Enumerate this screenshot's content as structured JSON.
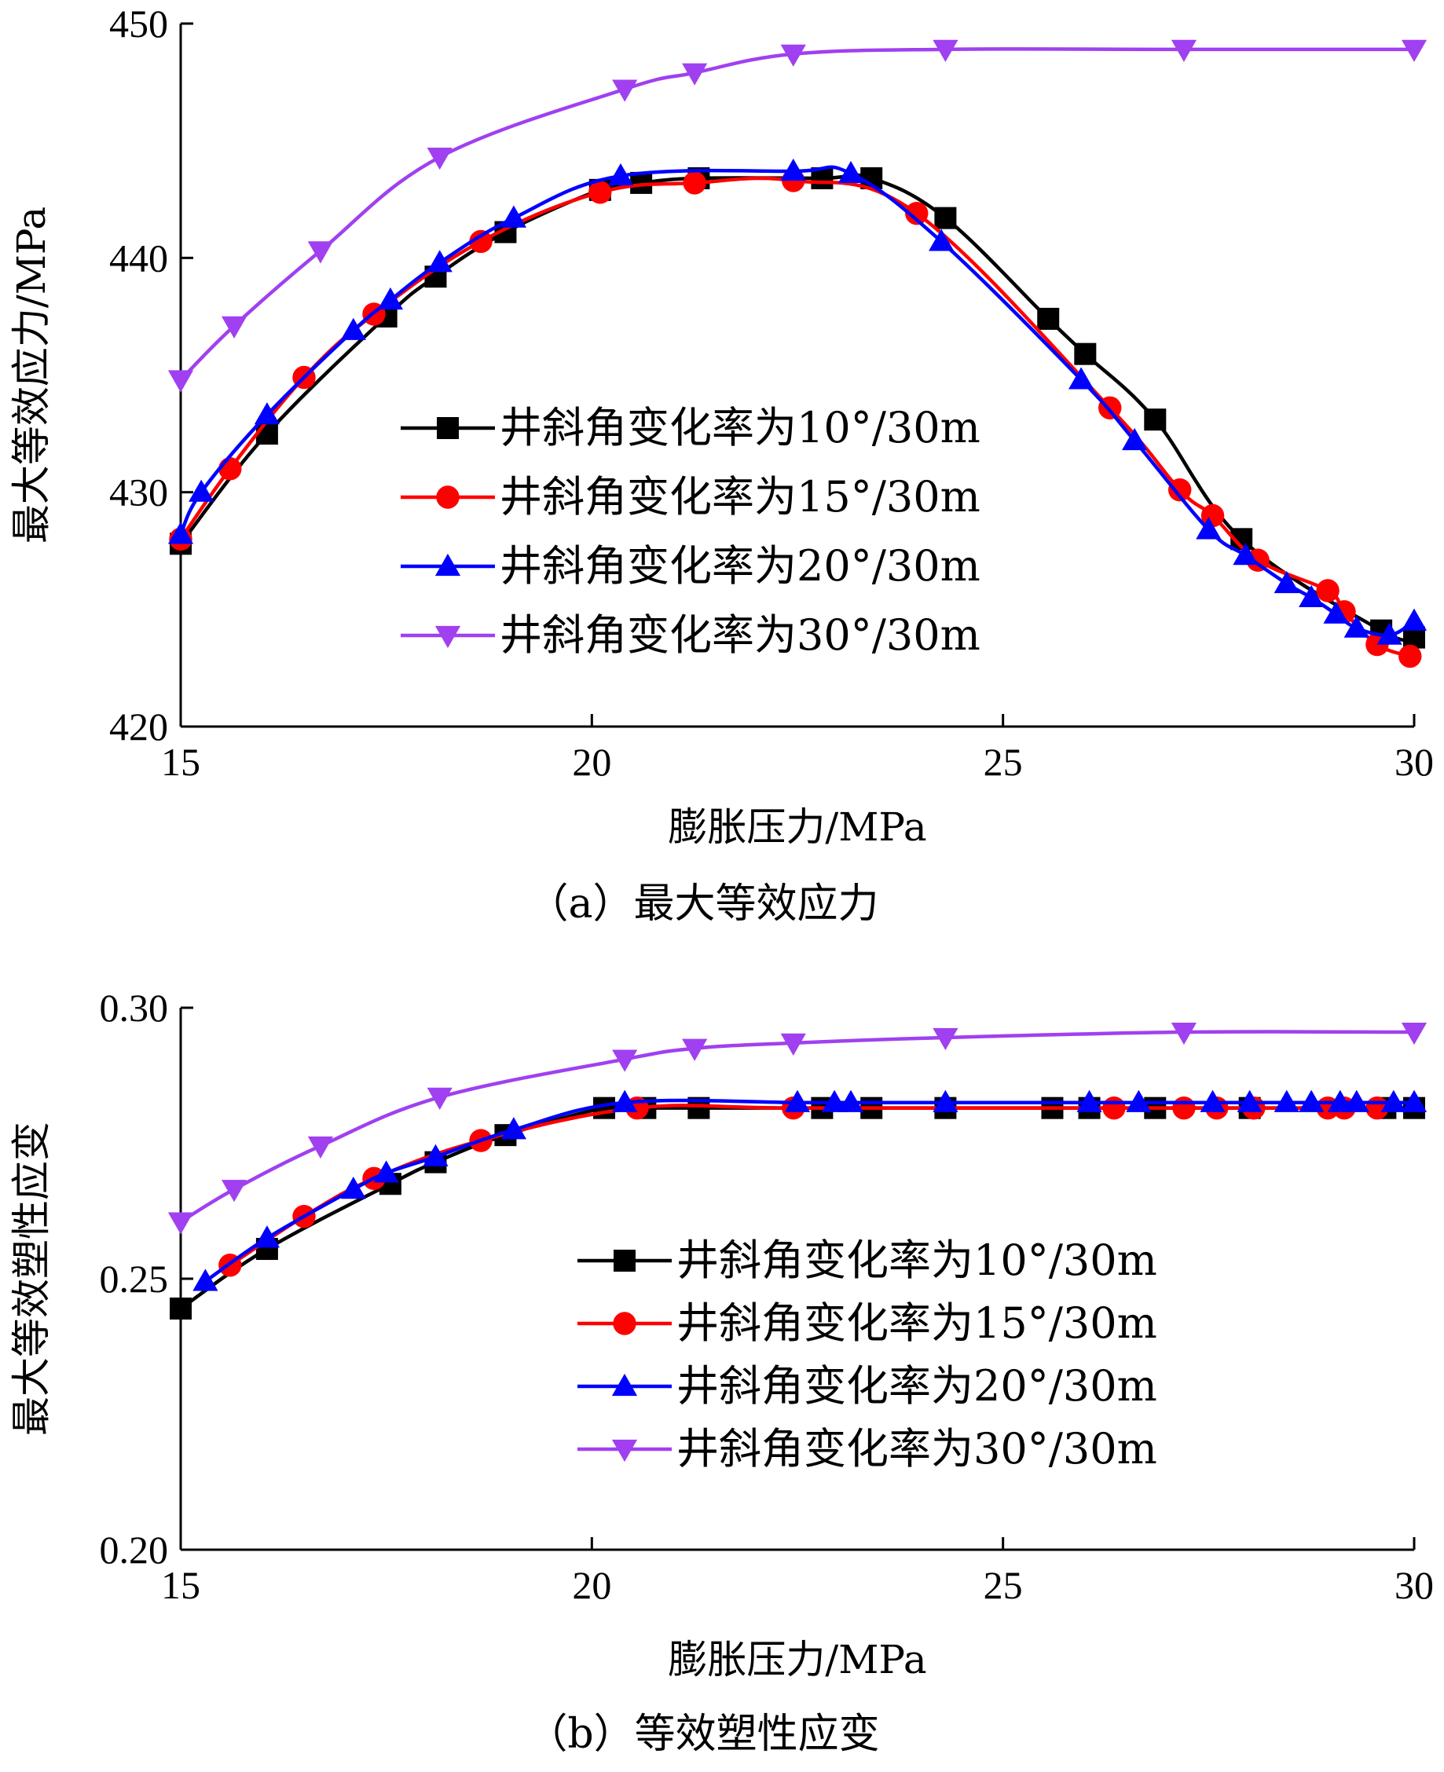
{
  "chart_data": [
    {
      "type": "line",
      "caption": "（a）最大等效应力",
      "xlabel": "膨胀压力/MPa",
      "ylabel": "最大等效应力/MPa",
      "xlim": [
        15,
        30
      ],
      "ylim": [
        420,
        450
      ],
      "xticks": [
        15,
        20,
        25,
        30
      ],
      "yticks": [
        420,
        430,
        440,
        450
      ],
      "ytick_labels": [
        "420",
        "430",
        "440",
        "450"
      ],
      "legend_position": "middle-center",
      "series": [
        {
          "name": "井斜角变化率为10°/30m",
          "color": "#000000",
          "marker": "square",
          "x": [
            15,
            16.05,
            17.5,
            18.1,
            18.95,
            20.1,
            20.6,
            21.3,
            22.8,
            23.4,
            24.3,
            25.55,
            26.0,
            26.85,
            27.9,
            29.6,
            30
          ],
          "y": [
            427.8,
            432.5,
            437.5,
            439.2,
            441.1,
            442.9,
            443.2,
            443.4,
            443.4,
            443.4,
            441.7,
            437.4,
            435.9,
            433.1,
            428.0,
            424.1,
            423.8
          ]
        },
        {
          "name": "井斜角变化率为15°/30m",
          "color": "#ff0000",
          "marker": "circle",
          "x": [
            15,
            15.6,
            16.5,
            17.35,
            18.65,
            20.1,
            21.25,
            22.45,
            23.95,
            26.3,
            27.15,
            27.55,
            28.1,
            28.95,
            29.15,
            29.55,
            29.95
          ],
          "y": [
            428.0,
            431.0,
            434.9,
            437.6,
            440.7,
            442.8,
            443.2,
            443.3,
            441.9,
            433.6,
            430.1,
            429.0,
            427.1,
            425.8,
            424.9,
            423.5,
            423.0
          ]
        },
        {
          "name": "井斜角变化率为20°/30m",
          "color": "#0000ff",
          "marker": "triangle-up",
          "x": [
            15,
            15.25,
            16.05,
            17.1,
            17.55,
            18.15,
            19.05,
            20.35,
            22.45,
            23.15,
            24.25,
            25.95,
            26.6,
            27.5,
            27.95,
            28.45,
            28.75,
            29.05,
            29.3,
            29.7,
            30
          ],
          "y": [
            428.2,
            430.0,
            433.3,
            436.9,
            438.2,
            439.8,
            441.7,
            443.5,
            443.7,
            443.6,
            440.7,
            434.8,
            432.2,
            428.4,
            427.3,
            426.1,
            425.5,
            424.8,
            424.2,
            423.9,
            424.5
          ]
        },
        {
          "name": "井斜角变化率为30°/30m",
          "color": "#a040f0",
          "marker": "triangle-down",
          "x": [
            15,
            15.65,
            16.7,
            18.15,
            20.4,
            21.25,
            22.45,
            24.3,
            27.2,
            30
          ],
          "y": [
            434.8,
            437.1,
            440.3,
            444.3,
            447.2,
            447.9,
            448.7,
            448.9,
            448.9,
            448.9
          ]
        }
      ]
    },
    {
      "type": "line",
      "caption": "（b）等效塑性应变",
      "xlabel": "膨胀压力/MPa",
      "ylabel": "最大等效塑性应变",
      "xlim": [
        15,
        30
      ],
      "ylim": [
        0.2,
        0.3
      ],
      "xticks": [
        15,
        20,
        25,
        30
      ],
      "yticks": [
        0.2,
        0.25,
        0.3
      ],
      "ytick_labels": [
        "0.20",
        "0.25",
        "0.30"
      ],
      "legend_position": "bottom-center",
      "series": [
        {
          "name": "井斜角变化率为10°/30m",
          "color": "#000000",
          "marker": "square",
          "x": [
            15,
            16.05,
            17.55,
            18.1,
            18.95,
            20.15,
            20.65,
            21.3,
            22.8,
            23.4,
            24.3,
            25.6,
            26.05,
            26.85,
            28.0,
            29.65,
            30
          ],
          "y": [
            0.2445,
            0.2555,
            0.2675,
            0.2715,
            0.2765,
            0.2815,
            0.2815,
            0.2815,
            0.2815,
            0.2815,
            0.2815,
            0.2815,
            0.2815,
            0.2815,
            0.2815,
            0.2815,
            0.2815
          ]
        },
        {
          "name": "井斜角变化率为15°/30m",
          "color": "#ff0000",
          "marker": "circle",
          "x": [
            15.6,
            16.5,
            17.35,
            18.65,
            20.55,
            22.45,
            26.35,
            27.2,
            27.6,
            28.05,
            28.95,
            29.15,
            29.55
          ],
          "y": [
            0.2525,
            0.2615,
            0.2685,
            0.2755,
            0.2815,
            0.2815,
            0.2815,
            0.2815,
            0.2815,
            0.2815,
            0.2815,
            0.2815,
            0.2815
          ]
        },
        {
          "name": "井斜角变化率为20°/30m",
          "color": "#0000ff",
          "marker": "triangle-up",
          "x": [
            15.3,
            16.05,
            17.1,
            17.5,
            18.1,
            19.05,
            20.4,
            22.5,
            22.95,
            23.15,
            24.3,
            26.05,
            26.65,
            27.55,
            28.0,
            28.45,
            28.75,
            29.1,
            29.3,
            29.75,
            30
          ],
          "y": [
            0.2495,
            0.2575,
            0.2665,
            0.2695,
            0.2725,
            0.2775,
            0.2825,
            0.2825,
            0.2825,
            0.2825,
            0.2825,
            0.2825,
            0.2825,
            0.2825,
            0.2825,
            0.2825,
            0.2825,
            0.2825,
            0.2825,
            0.2825,
            0.2825
          ]
        },
        {
          "name": "井斜角变化率为30°/30m",
          "color": "#a040f0",
          "marker": "triangle-down",
          "x": [
            15,
            15.65,
            16.7,
            18.15,
            20.4,
            21.25,
            22.45,
            24.3,
            27.2,
            30
          ],
          "y": [
            0.2605,
            0.2665,
            0.2745,
            0.2835,
            0.2905,
            0.2925,
            0.2935,
            0.2945,
            0.2955,
            0.2955
          ]
        }
      ]
    }
  ]
}
